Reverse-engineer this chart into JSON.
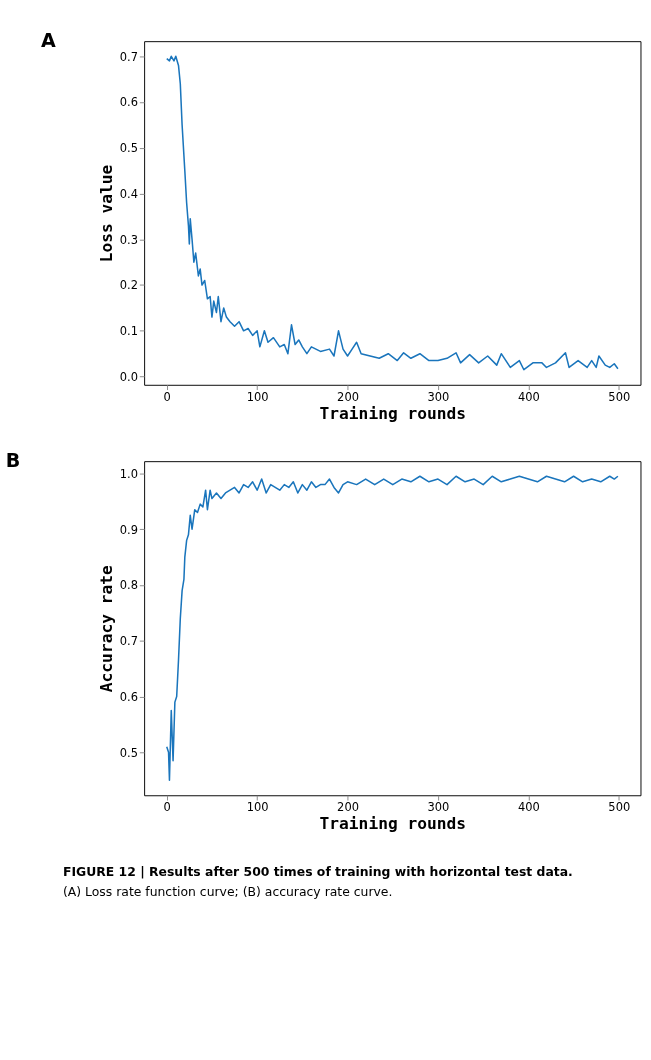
{
  "chart_data": [
    {
      "type": "line",
      "title": "A",
      "xlabel": "Training rounds",
      "ylabel": "Loss value",
      "xlim": [
        -25,
        524
      ],
      "ylim": [
        -0.018,
        0.733
      ],
      "xticks": [
        0,
        100,
        200,
        300,
        400,
        500
      ],
      "yticks": [
        {
          "value": 0,
          "label": "0.0"
        },
        0.1,
        0.2,
        0.3,
        0.4,
        0.5,
        0.6,
        0.7
      ],
      "grid": false,
      "legend": false,
      "line_style": "solid",
      "x": [
        0,
        3,
        5,
        8,
        10,
        13,
        15,
        17,
        20,
        22,
        24,
        25,
        26,
        28,
        30,
        32,
        35,
        37,
        39,
        42,
        45,
        48,
        50,
        52,
        55,
        57,
        60,
        63,
        66,
        70,
        75,
        80,
        85,
        90,
        95,
        100,
        103,
        108,
        112,
        118,
        125,
        130,
        134,
        138,
        142,
        146,
        150,
        155,
        160,
        170,
        180,
        185,
        190,
        195,
        200,
        205,
        210,
        215,
        225,
        235,
        245,
        255,
        262,
        270,
        280,
        290,
        300,
        310,
        320,
        325,
        335,
        345,
        355,
        365,
        370,
        380,
        390,
        395,
        405,
        415,
        420,
        430,
        441,
        445,
        455,
        465,
        470,
        475,
        478,
        485,
        490,
        495,
        499
      ],
      "series": [
        {
          "color": "#1a75bc",
          "values": [
            0.695,
            0.69,
            0.7,
            0.69,
            0.7,
            0.68,
            0.64,
            0.55,
            0.45,
            0.38,
            0.33,
            0.29,
            0.345,
            0.3,
            0.25,
            0.27,
            0.22,
            0.235,
            0.2,
            0.21,
            0.17,
            0.175,
            0.13,
            0.165,
            0.14,
            0.175,
            0.12,
            0.15,
            0.13,
            0.12,
            0.11,
            0.12,
            0.1,
            0.105,
            0.09,
            0.1,
            0.065,
            0.1,
            0.075,
            0.085,
            0.065,
            0.07,
            0.05,
            0.113,
            0.07,
            0.08,
            0.065,
            0.05,
            0.065,
            0.055,
            0.06,
            0.045,
            0.1,
            0.06,
            0.045,
            0.06,
            0.075,
            0.05,
            0.045,
            0.04,
            0.05,
            0.035,
            0.052,
            0.04,
            0.05,
            0.035,
            0.035,
            0.04,
            0.052,
            0.03,
            0.048,
            0.03,
            0.045,
            0.025,
            0.05,
            0.02,
            0.035,
            0.015,
            0.03,
            0.03,
            0.02,
            0.03,
            0.052,
            0.02,
            0.035,
            0.02,
            0.035,
            0.02,
            0.045,
            0.025,
            0.02,
            0.028,
            0.017
          ]
        }
      ]
    },
    {
      "type": "line",
      "title": "B",
      "xlabel": "Training rounds",
      "ylabel": "Accuracy rate",
      "xlim": [
        -25,
        524
      ],
      "ylim": [
        0.423,
        1.022
      ],
      "xticks": [
        0,
        100,
        200,
        300,
        400,
        500
      ],
      "yticks": [
        0.5,
        0.6,
        0.7,
        0.8,
        0.9,
        {
          "value": 1,
          "label": "1.0"
        }
      ],
      "grid": false,
      "legend": false,
      "line_style": "solid",
      "annotations": [
        "FIGURE 12 | Results after 500 times of training with horizontal test data.",
        "(A) Loss rate function curve; (B) accuracy rate curve."
      ],
      "x": [
        0,
        2,
        3,
        5,
        7,
        9,
        11,
        13,
        15,
        17,
        19,
        20,
        22,
        24,
        26,
        28,
        31,
        34,
        37,
        40,
        43,
        45,
        48,
        50,
        55,
        60,
        65,
        70,
        75,
        80,
        85,
        90,
        95,
        100,
        105,
        110,
        115,
        120,
        125,
        130,
        135,
        140,
        145,
        150,
        155,
        160,
        165,
        170,
        175,
        180,
        185,
        190,
        195,
        200,
        210,
        220,
        230,
        240,
        250,
        260,
        270,
        280,
        290,
        300,
        310,
        320,
        330,
        340,
        350,
        360,
        370,
        380,
        390,
        400,
        410,
        420,
        430,
        440,
        450,
        460,
        470,
        480,
        490,
        495,
        499
      ],
      "series": [
        {
          "color": "#1a75bc",
          "values": [
            0.51,
            0.5,
            0.45,
            0.575,
            0.485,
            0.59,
            0.6,
            0.665,
            0.74,
            0.79,
            0.81,
            0.85,
            0.88,
            0.89,
            0.925,
            0.9,
            0.935,
            0.93,
            0.945,
            0.94,
            0.97,
            0.935,
            0.97,
            0.955,
            0.965,
            0.955,
            0.965,
            0.97,
            0.975,
            0.965,
            0.98,
            0.975,
            0.985,
            0.97,
            0.99,
            0.965,
            0.98,
            0.975,
            0.97,
            0.98,
            0.975,
            0.985,
            0.965,
            0.98,
            0.97,
            0.985,
            0.975,
            0.98,
            0.98,
            0.99,
            0.975,
            0.965,
            0.98,
            0.985,
            0.98,
            0.99,
            0.98,
            0.99,
            0.98,
            0.99,
            0.985,
            0.995,
            0.985,
            0.99,
            0.98,
            0.995,
            0.985,
            0.99,
            0.98,
            0.995,
            0.985,
            0.99,
            0.995,
            0.99,
            0.985,
            0.995,
            0.99,
            0.985,
            0.995,
            0.985,
            0.99,
            0.985,
            0.995,
            0.99,
            0.995
          ]
        }
      ]
    }
  ]
}
